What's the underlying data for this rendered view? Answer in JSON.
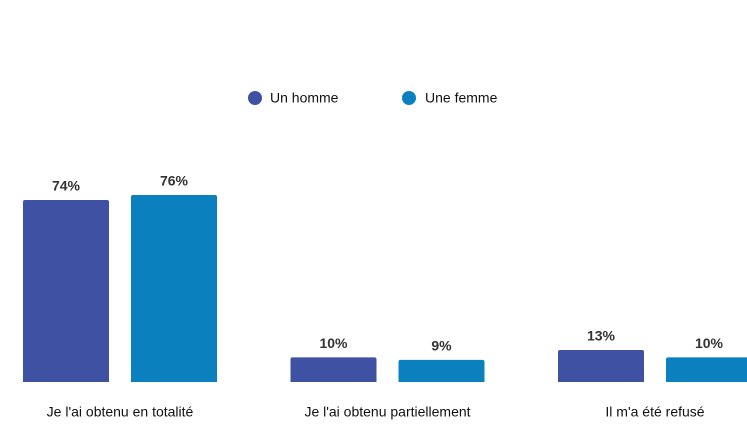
{
  "chart_data": {
    "type": "bar",
    "categories": [
      "Je l'ai obtenu en totalité",
      "Je l'ai obtenu partiellement",
      "Il m'a été refusé"
    ],
    "series": [
      {
        "name": "Un homme",
        "color": "#3f51a3",
        "values": [
          74,
          10,
          13
        ],
        "value_labels": [
          "74%",
          "10%",
          "13%"
        ]
      },
      {
        "name": "Une femme",
        "color": "#0a80bf",
        "values": [
          76,
          9,
          10
        ],
        "value_labels": [
          "76%",
          "9%",
          "10%"
        ]
      }
    ]
  }
}
